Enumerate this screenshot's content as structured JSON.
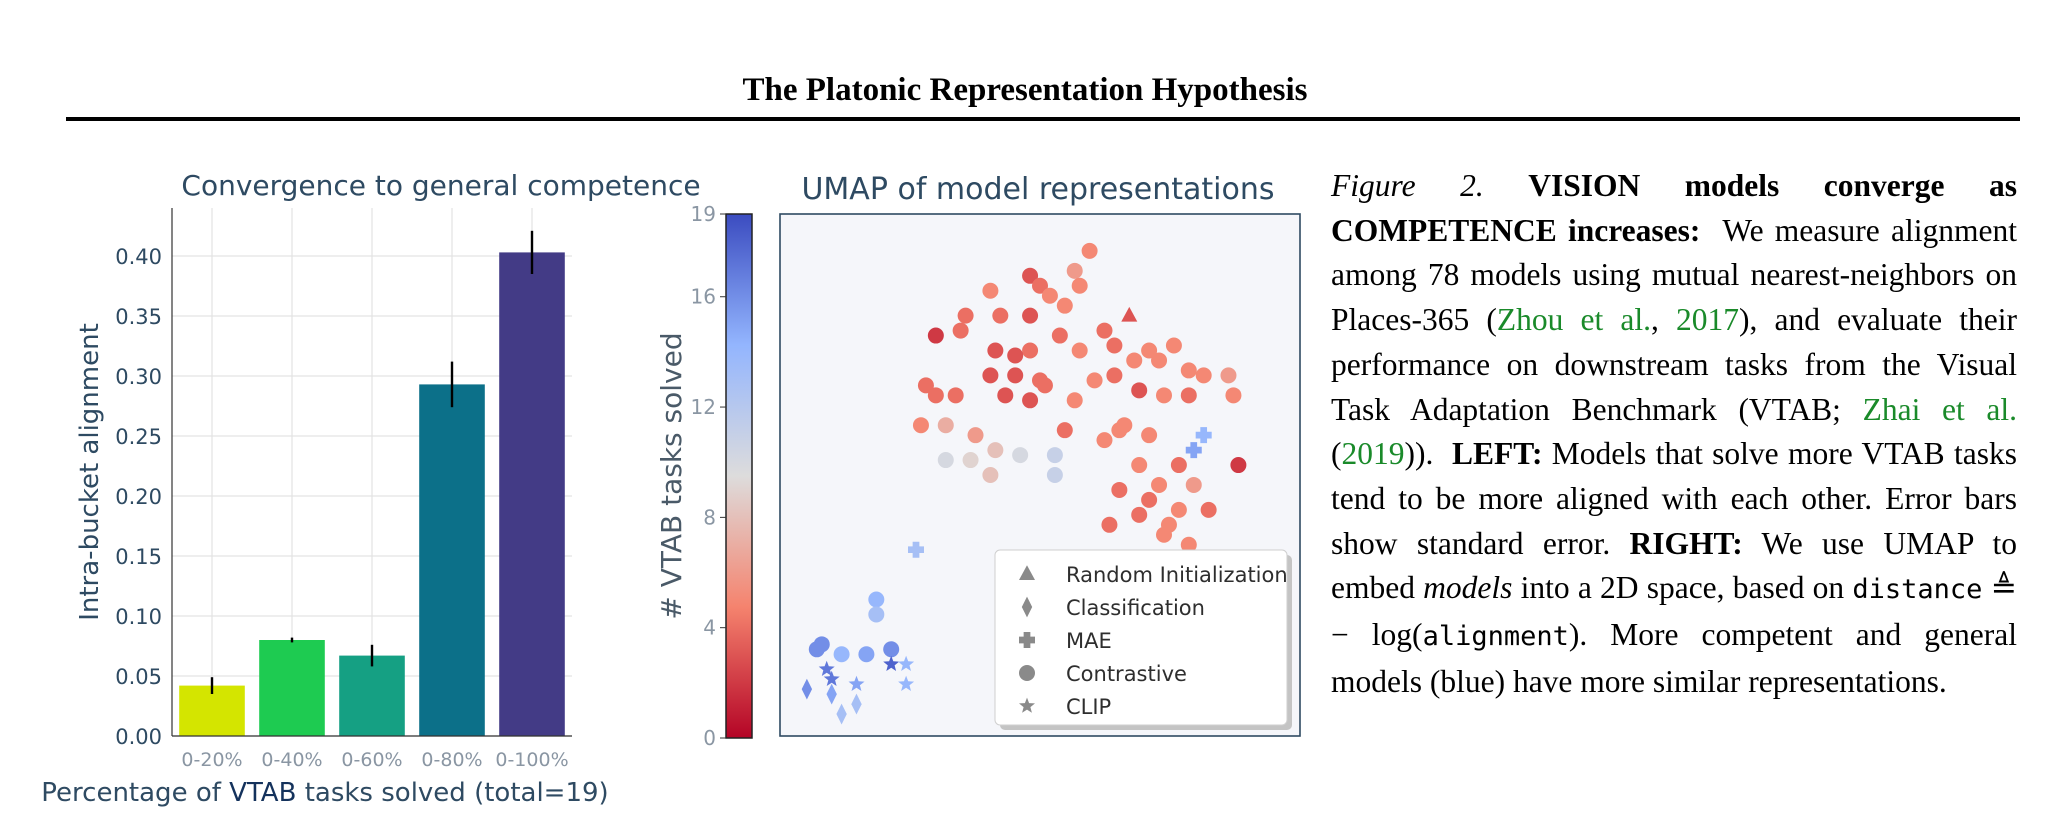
{
  "header": {
    "title": "The Platonic Representation Hypothesis"
  },
  "chart_data": [
    {
      "type": "bar",
      "title": "Convergence to general competence",
      "xlabel_prefix": "Percentage of ",
      "xlabel_highlight": "VTAB",
      "xlabel_suffix": " tasks solved (total=19)",
      "ylabel": "Intra-bucket alignment",
      "categories": [
        "0-20%",
        "0-40%",
        "0-60%",
        "0-80%",
        "0-100%"
      ],
      "values": [
        0.042,
        0.08,
        0.067,
        0.293,
        0.403
      ],
      "errors": [
        0.007,
        0.002,
        0.009,
        0.019,
        0.018
      ],
      "colors": [
        "#d4e500",
        "#1ecb51",
        "#15a083",
        "#0c7089",
        "#433b86"
      ],
      "ylim": [
        0,
        0.44
      ],
      "yticks": [
        "0.00",
        "0.05",
        "0.10",
        "0.15",
        "0.20",
        "0.25",
        "0.30",
        "0.35",
        "0.40"
      ],
      "grid": true
    },
    {
      "type": "scatter",
      "title": "UMAP of model representations",
      "colorbar_label": "# VTAB tasks solved",
      "colorbar_ticks": [
        "0",
        "4",
        "8",
        "12",
        "16",
        "19"
      ],
      "colorbar_range": [
        0,
        19
      ],
      "legend_position": "lower-right",
      "legend": [
        {
          "marker": "triangle",
          "label": "Random Initialization"
        },
        {
          "marker": "diamond",
          "label": "Classification"
        },
        {
          "marker": "plus",
          "label": "MAE"
        },
        {
          "marker": "circle",
          "label": "Contrastive"
        },
        {
          "marker": "star",
          "label": "CLIP"
        }
      ],
      "xlim": [
        0,
        100
      ],
      "ylim": [
        0,
        100
      ],
      "points": [
        {
          "x": 68,
          "y": 82,
          "v": 3,
          "m": "triangle"
        },
        {
          "x": 34,
          "y": 79,
          "v": 4,
          "m": "circle"
        },
        {
          "x": 40,
          "y": 87,
          "v": 5,
          "m": "circle"
        },
        {
          "x": 57,
          "y": 91,
          "v": 6,
          "m": "circle"
        },
        {
          "x": 60,
          "y": 95,
          "v": 5,
          "m": "circle"
        },
        {
          "x": 48,
          "y": 90,
          "v": 3,
          "m": "circle"
        },
        {
          "x": 50,
          "y": 88,
          "v": 4,
          "m": "circle"
        },
        {
          "x": 52,
          "y": 86,
          "v": 5,
          "m": "circle"
        },
        {
          "x": 58,
          "y": 88,
          "v": 5,
          "m": "circle"
        },
        {
          "x": 55,
          "y": 84,
          "v": 5,
          "m": "circle"
        },
        {
          "x": 42,
          "y": 82,
          "v": 4,
          "m": "circle"
        },
        {
          "x": 35,
          "y": 82,
          "v": 4,
          "m": "circle"
        },
        {
          "x": 48,
          "y": 82,
          "v": 3,
          "m": "circle"
        },
        {
          "x": 29,
          "y": 78,
          "v": 2,
          "m": "circle"
        },
        {
          "x": 41,
          "y": 75,
          "v": 3,
          "m": "circle"
        },
        {
          "x": 48,
          "y": 75,
          "v": 4,
          "m": "circle"
        },
        {
          "x": 58,
          "y": 75,
          "v": 5,
          "m": "circle"
        },
        {
          "x": 63,
          "y": 79,
          "v": 4,
          "m": "circle"
        },
        {
          "x": 54,
          "y": 78,
          "v": 4,
          "m": "circle"
        },
        {
          "x": 27,
          "y": 68,
          "v": 4,
          "m": "circle"
        },
        {
          "x": 40,
          "y": 70,
          "v": 3,
          "m": "circle"
        },
        {
          "x": 45,
          "y": 70,
          "v": 3,
          "m": "circle"
        },
        {
          "x": 50,
          "y": 69,
          "v": 4,
          "m": "circle"
        },
        {
          "x": 29,
          "y": 66,
          "v": 4,
          "m": "circle"
        },
        {
          "x": 33,
          "y": 66,
          "v": 4,
          "m": "circle"
        },
        {
          "x": 43,
          "y": 66,
          "v": 3,
          "m": "circle"
        },
        {
          "x": 48,
          "y": 65,
          "v": 3,
          "m": "circle"
        },
        {
          "x": 51,
          "y": 68,
          "v": 4,
          "m": "circle"
        },
        {
          "x": 57,
          "y": 65,
          "v": 5,
          "m": "circle"
        },
        {
          "x": 65,
          "y": 70,
          "v": 4,
          "m": "circle"
        },
        {
          "x": 69,
          "y": 73,
          "v": 5,
          "m": "circle"
        },
        {
          "x": 74,
          "y": 73,
          "v": 5,
          "m": "circle"
        },
        {
          "x": 70,
          "y": 67,
          "v": 3,
          "m": "circle"
        },
        {
          "x": 77,
          "y": 76,
          "v": 5,
          "m": "circle"
        },
        {
          "x": 80,
          "y": 71,
          "v": 5,
          "m": "circle"
        },
        {
          "x": 83,
          "y": 70,
          "v": 5,
          "m": "circle"
        },
        {
          "x": 80,
          "y": 66,
          "v": 4,
          "m": "circle"
        },
        {
          "x": 88,
          "y": 70,
          "v": 6,
          "m": "circle"
        },
        {
          "x": 89,
          "y": 66,
          "v": 5,
          "m": "circle"
        },
        {
          "x": 75,
          "y": 66,
          "v": 5,
          "m": "circle"
        },
        {
          "x": 61,
          "y": 69,
          "v": 5,
          "m": "circle"
        },
        {
          "x": 72,
          "y": 75,
          "v": 5,
          "m": "circle"
        },
        {
          "x": 65,
          "y": 76,
          "v": 4,
          "m": "circle"
        },
        {
          "x": 45,
          "y": 74,
          "v": 3,
          "m": "circle"
        },
        {
          "x": 26,
          "y": 60,
          "v": 5,
          "m": "circle"
        },
        {
          "x": 37,
          "y": 58,
          "v": 6,
          "m": "circle"
        },
        {
          "x": 55,
          "y": 59,
          "v": 4,
          "m": "circle"
        },
        {
          "x": 63,
          "y": 57,
          "v": 5,
          "m": "circle"
        },
        {
          "x": 66,
          "y": 59,
          "v": 5,
          "m": "circle"
        },
        {
          "x": 67,
          "y": 60,
          "v": 5,
          "m": "circle"
        },
        {
          "x": 72,
          "y": 58,
          "v": 5,
          "m": "circle"
        },
        {
          "x": 70,
          "y": 52,
          "v": 5,
          "m": "circle"
        },
        {
          "x": 74,
          "y": 48,
          "v": 5,
          "m": "circle"
        },
        {
          "x": 78,
          "y": 52,
          "v": 4,
          "m": "circle"
        },
        {
          "x": 81,
          "y": 48,
          "v": 6,
          "m": "circle"
        },
        {
          "x": 66,
          "y": 47,
          "v": 4,
          "m": "circle"
        },
        {
          "x": 72,
          "y": 45,
          "v": 4,
          "m": "circle"
        },
        {
          "x": 70,
          "y": 42,
          "v": 4,
          "m": "circle"
        },
        {
          "x": 78,
          "y": 43,
          "v": 5,
          "m": "circle"
        },
        {
          "x": 64,
          "y": 40,
          "v": 4,
          "m": "circle"
        },
        {
          "x": 75,
          "y": 38,
          "v": 5,
          "m": "circle"
        },
        {
          "x": 80,
          "y": 36,
          "v": 5,
          "m": "circle"
        },
        {
          "x": 84,
          "y": 43,
          "v": 4,
          "m": "circle"
        },
        {
          "x": 76,
          "y": 40,
          "v": 5,
          "m": "circle"
        },
        {
          "x": 90,
          "y": 52,
          "v": 2,
          "m": "circle"
        },
        {
          "x": 41,
          "y": 55,
          "v": 8,
          "m": "circle"
        },
        {
          "x": 36,
          "y": 53,
          "v": 9,
          "m": "circle"
        },
        {
          "x": 31,
          "y": 53,
          "v": 10,
          "m": "circle"
        },
        {
          "x": 40,
          "y": 50,
          "v": 8,
          "m": "circle"
        },
        {
          "x": 46,
          "y": 54,
          "v": 10,
          "m": "circle"
        },
        {
          "x": 53,
          "y": 50,
          "v": 11,
          "m": "circle"
        },
        {
          "x": 53,
          "y": 54,
          "v": 11,
          "m": "circle"
        },
        {
          "x": 31,
          "y": 60,
          "v": 7,
          "m": "circle"
        },
        {
          "x": 83,
          "y": 58,
          "v": 14,
          "m": "plus"
        },
        {
          "x": 81,
          "y": 55,
          "v": 15,
          "m": "plus"
        },
        {
          "x": 25,
          "y": 35,
          "v": 13,
          "m": "plus"
        },
        {
          "x": 17,
          "y": 25,
          "v": 14,
          "m": "circle"
        },
        {
          "x": 17,
          "y": 22,
          "v": 13,
          "m": "circle"
        },
        {
          "x": 6,
          "y": 16,
          "v": 16,
          "m": "circle"
        },
        {
          "x": 5,
          "y": 15,
          "v": 16,
          "m": "circle"
        },
        {
          "x": 10,
          "y": 14,
          "v": 14,
          "m": "circle"
        },
        {
          "x": 15,
          "y": 14,
          "v": 15,
          "m": "circle"
        },
        {
          "x": 20,
          "y": 15,
          "v": 16,
          "m": "circle"
        },
        {
          "x": 7,
          "y": 11,
          "v": 17,
          "m": "star"
        },
        {
          "x": 8,
          "y": 9,
          "v": 17,
          "m": "star"
        },
        {
          "x": 13,
          "y": 8,
          "v": 15,
          "m": "star"
        },
        {
          "x": 20,
          "y": 12,
          "v": 18,
          "m": "star"
        },
        {
          "x": 23,
          "y": 12,
          "v": 14,
          "m": "star"
        },
        {
          "x": 23,
          "y": 8,
          "v": 14,
          "m": "star"
        },
        {
          "x": 3,
          "y": 7,
          "v": 16,
          "m": "diamond"
        },
        {
          "x": 8,
          "y": 6,
          "v": 15,
          "m": "diamond"
        },
        {
          "x": 10,
          "y": 2,
          "v": 13,
          "m": "diamond"
        },
        {
          "x": 13,
          "y": 4,
          "v": 13,
          "m": "diamond"
        }
      ]
    }
  ],
  "caption": {
    "figure_label": "Figure 2.",
    "bold_lead": "VISION models converge as COMPETENCE increases:",
    "t1": "We measure alignment among 78 models using mutual nearest-neighbors on Places-365 (",
    "cite1_author": "Zhou et al.",
    "comma": ", ",
    "cite1_year": "2017",
    "t2": "), and evaluate their performance on downstream tasks from the Visual Task Adaptation Benchmark (VTAB; ",
    "cite2_author": "Zhai et al.",
    "t3": " (",
    "cite2_year": "2019",
    "t4": ")).",
    "left_label": "LEFT:",
    "t5": "Models that solve more VTAB tasks tend to be more aligned with each other. Error bars show standard error.",
    "right_label": "RIGHT:",
    "t6": "We use UMAP to embed",
    "models_word": "models",
    "t7": "into a 2D space, based on",
    "distance_word": "distance",
    "approx_symbol": "≜",
    "neg_log": "− log(",
    "alignment_word": "alignment",
    "t8": "). More competent and general models (blue) have more similar representations."
  }
}
